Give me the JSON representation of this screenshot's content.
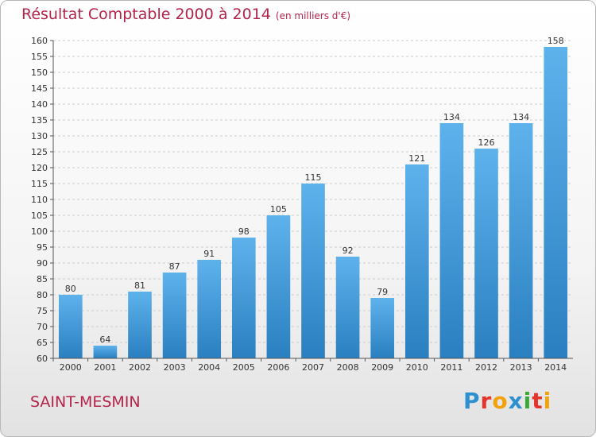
{
  "title": "Résultat Comptable 2000 à 2014",
  "subtitle": "(en milliers d'€)",
  "city": "SAINT-MESMIN",
  "logo": {
    "text": "Proxiti",
    "colors": [
      "#2e8fd1",
      "#e5352a",
      "#f2a20c",
      "#2e8fd1",
      "#3aa935",
      "#e5352a",
      "#f2a20c"
    ]
  },
  "colors": {
    "bar_top": "#5eb2ec",
    "bar_bottom": "#2a7fc0",
    "title": "#b4234a",
    "grid": "#cccccc"
  },
  "chart_data": {
    "type": "bar",
    "title": "Résultat Comptable 2000 à 2014",
    "subtitle": "(en milliers d'€)",
    "categories": [
      "2000",
      "2001",
      "2002",
      "2003",
      "2004",
      "2005",
      "2006",
      "2007",
      "2008",
      "2009",
      "2010",
      "2011",
      "2012",
      "2013",
      "2014"
    ],
    "values": [
      80,
      64,
      81,
      87,
      91,
      98,
      105,
      115,
      92,
      79,
      121,
      134,
      126,
      134,
      158
    ],
    "ylim": [
      60,
      160
    ],
    "ytick_step": 5,
    "grid": true,
    "grid_style": "dashed-horizontal"
  }
}
